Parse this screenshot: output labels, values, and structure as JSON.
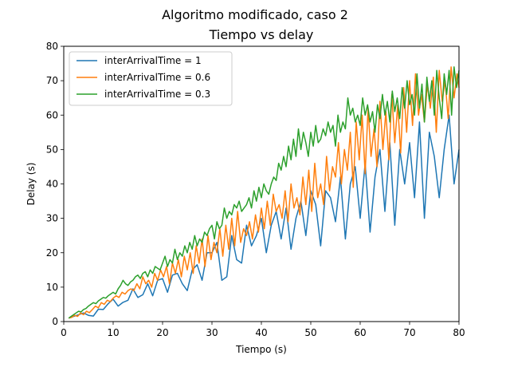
{
  "figure": {
    "suptitle": "Algoritmo modificado, caso 2"
  },
  "chart_data": {
    "type": "line",
    "title": "Tiempo vs delay",
    "xlabel": "Tiempo (s)",
    "ylabel": "Delay (s)",
    "xlim": [
      0,
      80
    ],
    "ylim": [
      0,
      80
    ],
    "xticks": [
      0,
      10,
      20,
      30,
      40,
      50,
      60,
      70,
      80
    ],
    "yticks": [
      0,
      10,
      20,
      30,
      40,
      50,
      60,
      70,
      80
    ],
    "grid": false,
    "legend_position": "top-left",
    "series": [
      {
        "name": "interArrivalTime = 1",
        "color": "#1f77b4",
        "x": [
          1,
          2,
          3,
          4,
          5,
          6,
          7,
          8,
          9,
          10,
          11,
          12,
          13,
          14,
          15,
          16,
          17,
          18,
          19,
          20,
          21,
          22,
          23,
          24,
          25,
          26,
          27,
          28,
          29,
          30,
          31,
          32,
          33,
          34,
          35,
          36,
          37,
          38,
          39,
          40,
          41,
          42,
          43,
          44,
          45,
          46,
          47,
          48,
          49,
          50,
          51,
          52,
          53,
          54,
          55,
          56,
          57,
          58,
          59,
          60,
          61,
          62,
          63,
          64,
          65,
          66,
          67,
          68,
          69,
          70,
          71,
          72,
          73,
          74,
          75,
          76,
          77,
          78,
          79,
          80
        ],
        "y": [
          1,
          1.5,
          2,
          2.5,
          1.8,
          1.6,
          3.6,
          3.5,
          5.2,
          6.5,
          4.5,
          5.6,
          6.2,
          9.5,
          7,
          7.8,
          11,
          7.5,
          12,
          12.5,
          8.5,
          13.5,
          14,
          11,
          9,
          15,
          16.5,
          12,
          20,
          20,
          23,
          12,
          13,
          25,
          18,
          17,
          28,
          22,
          25,
          30,
          20,
          28,
          32,
          24,
          33,
          21,
          30,
          35,
          25,
          38,
          34,
          22,
          38,
          36,
          29,
          42,
          24,
          40,
          45,
          30,
          46,
          26,
          42,
          50,
          32,
          52,
          28,
          50,
          40,
          52,
          36,
          58,
          30,
          55,
          48,
          36,
          50,
          60,
          40,
          50
        ]
      },
      {
        "name": "interArrivalTime = 0.6",
        "color": "#ff7f0e",
        "x": [
          1,
          1.6,
          2.2,
          2.8,
          3.4,
          4,
          4.6,
          5.2,
          5.8,
          6.4,
          7,
          7.6,
          8.2,
          8.8,
          9.4,
          10,
          10.6,
          11.2,
          11.8,
          12.4,
          13,
          13.6,
          14.2,
          14.8,
          15.4,
          16,
          16.6,
          17.2,
          17.8,
          18.4,
          19,
          19.6,
          20.2,
          20.8,
          21.4,
          22,
          22.6,
          23.2,
          23.8,
          24.4,
          25,
          25.6,
          26.2,
          26.8,
          27.4,
          28,
          28.6,
          29.2,
          29.8,
          30.4,
          31,
          31.6,
          32.2,
          32.8,
          33.4,
          34,
          34.6,
          35.2,
          35.8,
          36.4,
          37,
          37.6,
          38.2,
          38.8,
          39.4,
          40,
          40.6,
          41.2,
          41.8,
          42.4,
          43,
          43.6,
          44.2,
          44.8,
          45.4,
          46,
          46.6,
          47.2,
          47.8,
          48.4,
          49,
          49.6,
          50.2,
          50.8,
          51.4,
          52,
          52.6,
          53.2,
          53.8,
          54.4,
          55,
          55.6,
          56.2,
          56.8,
          57.4,
          58,
          58.6,
          59.2,
          59.8,
          60.4,
          61,
          61.6,
          62.2,
          62.8,
          63.4,
          64,
          64.6,
          65.2,
          65.8,
          66.4,
          67,
          67.6,
          68.2,
          68.8,
          69.4,
          70,
          70.6,
          71.2,
          71.8,
          72.4,
          73,
          73.6,
          74.2,
          74.8,
          75.4,
          76,
          76.6,
          77.2,
          77.8,
          78.4,
          79,
          79.6,
          80
        ],
        "y": [
          1,
          1.2,
          1.8,
          1.5,
          2.5,
          2,
          3,
          2.6,
          3.5,
          4.5,
          4,
          5.5,
          5,
          6.2,
          5.8,
          6.8,
          7.5,
          7,
          8.5,
          8,
          9,
          9.5,
          9,
          11,
          9.5,
          13,
          11,
          12,
          10,
          14,
          12,
          15,
          13,
          16,
          11,
          17,
          14,
          18,
          13,
          19,
          15,
          20,
          14,
          22,
          17,
          24,
          16,
          25,
          18,
          23,
          20,
          27,
          19,
          28,
          21,
          30,
          22,
          32,
          23,
          27,
          25,
          29,
          24,
          31,
          26,
          33,
          27,
          35,
          28,
          37,
          32,
          34,
          30,
          38,
          29,
          40,
          33,
          36,
          31,
          42,
          34,
          44,
          32,
          46,
          36,
          40,
          34,
          48,
          38,
          45,
          42,
          52,
          40,
          50,
          44,
          55,
          39,
          58,
          47,
          60,
          43,
          62,
          48,
          56,
          45,
          64,
          50,
          61,
          47,
          66,
          52,
          63,
          49,
          68,
          55,
          70,
          57,
          72,
          60,
          66,
          58,
          69,
          62,
          71,
          55,
          73,
          64,
          70,
          59,
          74,
          65,
          72,
          68
        ],
        "partial_values_note": ""
      },
      {
        "name": "interArrivalTime = 0.3",
        "color": "#2ca02c",
        "x": [
          1,
          1.5,
          2,
          2.5,
          3,
          3.5,
          4,
          4.5,
          5,
          5.5,
          6,
          6.5,
          7,
          7.5,
          8,
          8.5,
          9,
          9.5,
          10,
          10.5,
          11,
          11.5,
          12,
          12.5,
          13,
          13.5,
          14,
          14.5,
          15,
          15.5,
          16,
          16.5,
          17,
          17.5,
          18,
          18.5,
          19,
          19.5,
          20,
          20.5,
          21,
          21.5,
          22,
          22.5,
          23,
          23.5,
          24,
          24.5,
          25,
          25.5,
          26,
          26.5,
          27,
          27.5,
          28,
          28.5,
          29,
          29.5,
          30,
          30.5,
          31,
          31.5,
          32,
          32.5,
          33,
          33.5,
          34,
          34.5,
          35,
          35.5,
          36,
          36.5,
          37,
          37.5,
          38,
          38.5,
          39,
          39.5,
          40,
          40.5,
          41,
          41.5,
          42,
          42.5,
          43,
          43.5,
          44,
          44.5,
          45,
          45.5,
          46,
          46.5,
          47,
          47.5,
          48,
          48.5,
          49,
          49.5,
          50,
          50.5,
          51,
          51.5,
          52,
          52.5,
          53,
          53.5,
          54,
          54.5,
          55,
          55.5,
          56,
          56.5,
          57,
          57.5,
          58,
          58.5,
          59,
          59.5,
          60,
          60.5,
          61,
          61.5,
          62,
          62.5,
          63,
          63.5,
          64,
          64.5,
          65,
          65.5,
          66,
          66.5,
          67,
          67.5,
          68,
          68.5,
          69,
          69.5,
          70,
          70.5,
          71,
          71.5,
          72,
          72.5,
          73,
          73.5,
          74,
          74.5,
          75,
          75.5,
          76,
          76.5,
          77,
          77.5,
          78,
          78.5,
          79,
          79.5,
          80
        ],
        "y": [
          1,
          1.5,
          2,
          2.5,
          3,
          2.8,
          3.5,
          3.8,
          4.5,
          5,
          5.5,
          5.2,
          6,
          6.5,
          7,
          6.8,
          7.5,
          8,
          8.5,
          8,
          9.5,
          10.5,
          12,
          11,
          10.5,
          11.5,
          12,
          13,
          13.5,
          12.5,
          14,
          14.5,
          13,
          15,
          14,
          16,
          15.5,
          15,
          17,
          19,
          16,
          18,
          17,
          21,
          18,
          20,
          19,
          22,
          20,
          23,
          21,
          25,
          22,
          24,
          23,
          26,
          25,
          27,
          28,
          24,
          29,
          27,
          28,
          33,
          30,
          32,
          31,
          34,
          33,
          35,
          32,
          33,
          34,
          36,
          33,
          38,
          35,
          39,
          36,
          40,
          38,
          37,
          40,
          42,
          41,
          46,
          44,
          48,
          45,
          51,
          47,
          53,
          48,
          56,
          50,
          55,
          52,
          48,
          55,
          51,
          57,
          52,
          53,
          56,
          54,
          58,
          55,
          57,
          51,
          60,
          55,
          58,
          56,
          65,
          60,
          62,
          58,
          60,
          57,
          65,
          60,
          63,
          58,
          61,
          55,
          63,
          59,
          66,
          60,
          64,
          58,
          67,
          61,
          65,
          59,
          68,
          62,
          70,
          63,
          66,
          60,
          72,
          62,
          69,
          58,
          71,
          64,
          70,
          60,
          73,
          65,
          59,
          72,
          66,
          73,
          60,
          74,
          68,
          73
        ]
      }
    ]
  }
}
